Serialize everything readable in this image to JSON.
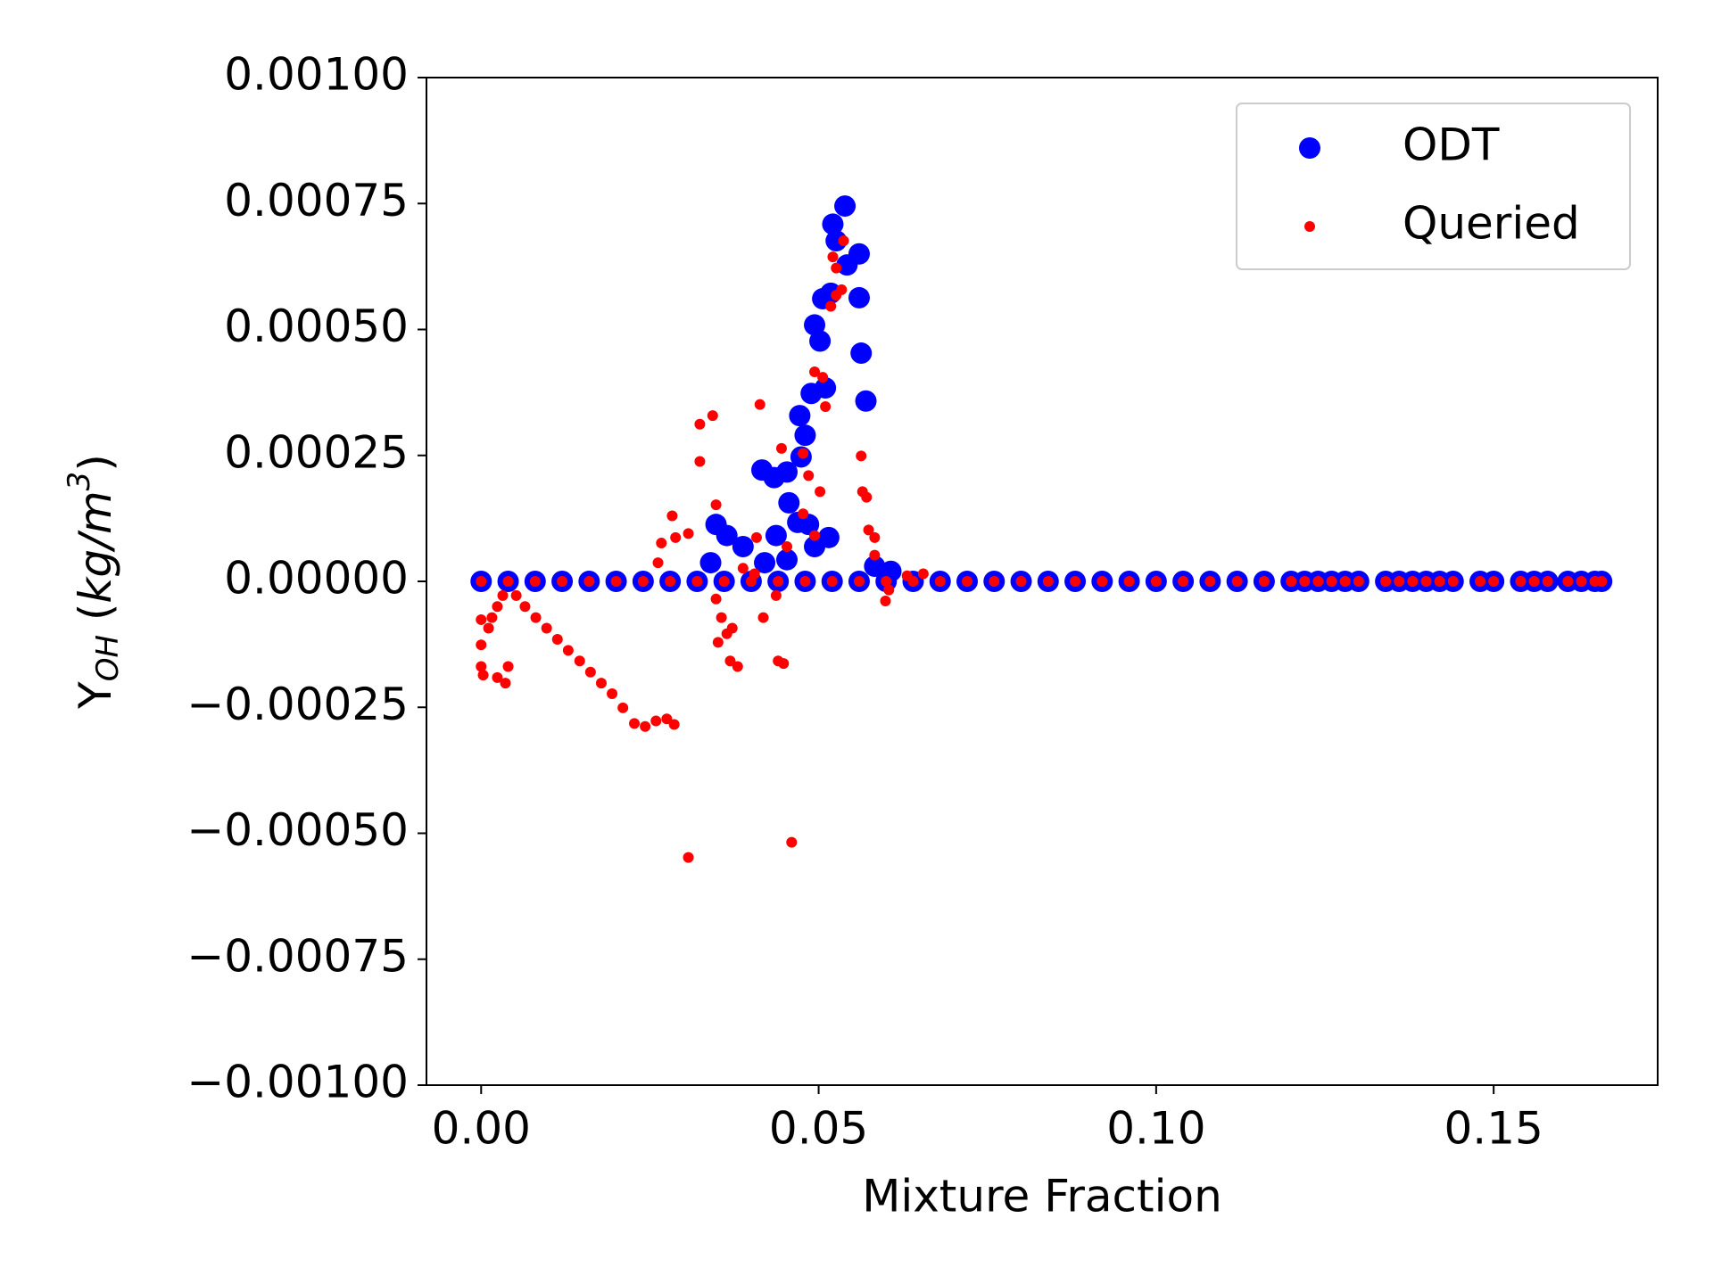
{
  "chart_data": {
    "type": "scatter",
    "xlabel": "Mixture Fraction",
    "ylabel_parts": [
      "Y",
      "OH",
      " (",
      "kg/m",
      "3",
      ")"
    ],
    "xlim": [
      -0.0081,
      0.1743
    ],
    "ylim": [
      -0.001,
      0.001
    ],
    "xticks": [
      {
        "value": 0,
        "label": "0.00"
      },
      {
        "value": 0.05,
        "label": "0.05"
      },
      {
        "value": 0.1,
        "label": "0.10"
      },
      {
        "value": 0.15,
        "label": "0.15"
      }
    ],
    "yticks": [
      {
        "value": -0.001,
        "label": "−0.00100"
      },
      {
        "value": -0.00075,
        "label": "−0.00075"
      },
      {
        "value": -0.0005,
        "label": "−0.00050"
      },
      {
        "value": -0.00025,
        "label": "−0.00025"
      },
      {
        "value": 0,
        "label": "0.00000"
      },
      {
        "value": 0.00025,
        "label": "0.00025"
      },
      {
        "value": 0.0005,
        "label": "0.00050"
      },
      {
        "value": 0.00075,
        "label": "0.00075"
      },
      {
        "value": 0.001,
        "label": "0.00100"
      }
    ],
    "legend": "upper right",
    "series": [
      {
        "name": "ODT",
        "color": "#0000ff",
        "marker_size": "large",
        "x": [
          0,
          0.004,
          0.008,
          0.012,
          0.016,
          0.02,
          0.024,
          0.028,
          0.032,
          0.036,
          0.04,
          0.044,
          0.048,
          0.052,
          0.056,
          0.06,
          0.064,
          0.068,
          0.072,
          0.076,
          0.08,
          0.084,
          0.088,
          0.092,
          0.096,
          0.1,
          0.104,
          0.108,
          0.112,
          0.116,
          0.12,
          0.122,
          0.124,
          0.126,
          0.128,
          0.13,
          0.134,
          0.136,
          0.138,
          0.14,
          0.142,
          0.144,
          0.148,
          0.15,
          0.154,
          0.156,
          0.158,
          0.161,
          0.163,
          0.165,
          0.166,
          0.0539,
          0.0521,
          0.0526,
          0.056,
          0.0542,
          0.0518,
          0.056,
          0.0506,
          0.0494,
          0.0502,
          0.0563,
          0.051,
          0.0489,
          0.057,
          0.0472,
          0.048,
          0.0474,
          0.0416,
          0.0434,
          0.0453,
          0.0456,
          0.0469,
          0.0348,
          0.0364,
          0.0388,
          0.0437,
          0.0485,
          0.0515,
          0.0494,
          0.034,
          0.042,
          0.0453,
          0.0583,
          0.0607
        ],
        "y": [
          0,
          0,
          0,
          0,
          0,
          0,
          0,
          0,
          0,
          0,
          0,
          0,
          0,
          0,
          0,
          0,
          0,
          0,
          0,
          0,
          0,
          0,
          0,
          0,
          0,
          0,
          0,
          0,
          0,
          0,
          0,
          0,
          0,
          0,
          0,
          0,
          0,
          0,
          0,
          0,
          0,
          0,
          0,
          0,
          0,
          0,
          0,
          0,
          0,
          0,
          0,
          0.000745,
          0.000709,
          0.000676,
          0.00065,
          0.000628,
          0.000572,
          0.000563,
          0.000561,
          0.000509,
          0.000477,
          0.000453,
          0.000384,
          0.000373,
          0.000358,
          0.000329,
          0.00029,
          0.000247,
          0.000221,
          0.000206,
          0.000217,
          0.000156,
          0.000117,
          0.000113,
          9.1e-05,
          6.9e-05,
          9.1e-05,
          0.000113,
          8.7e-05,
          6.9e-05,
          3.7e-05,
          3.7e-05,
          4.3e-05,
          3e-05,
          2e-05
        ]
      },
      {
        "name": "Queried",
        "color": "#ff0000",
        "marker_size": "small",
        "x": [
          0,
          0.004,
          0.008,
          0.012,
          0.016,
          0.02,
          0.024,
          0.028,
          0.032,
          0.036,
          0.04,
          0.044,
          0.048,
          0.052,
          0.056,
          0.06,
          0.064,
          0.068,
          0.072,
          0.076,
          0.08,
          0.084,
          0.088,
          0.092,
          0.096,
          0.1,
          0.104,
          0.108,
          0.112,
          0.116,
          0.12,
          0.122,
          0.124,
          0.126,
          0.128,
          0.13,
          0.134,
          0.136,
          0.138,
          0.14,
          0.142,
          0.144,
          0.148,
          0.15,
          0.154,
          0.156,
          0.158,
          0.161,
          0.163,
          0.165,
          0.166,
          0,
          0,
          0,
          0.0003,
          0.0011,
          0.0016,
          0.0024,
          0.0032,
          0.0024,
          0.0036,
          0.004,
          0.0052,
          0.0065,
          0.0081,
          0.0097,
          0.0113,
          0.0129,
          0.0146,
          0.0162,
          0.0178,
          0.0194,
          0.021,
          0.0227,
          0.0243,
          0.0259,
          0.0275,
          0.0286,
          0.0307,
          0.046,
          0.0324,
          0.0343,
          0.0324,
          0.0348,
          0.0283,
          0.0267,
          0.0288,
          0.0307,
          0.0262,
          0.0348,
          0.0356,
          0.0364,
          0.0351,
          0.0372,
          0.038,
          0.0369,
          0.0413,
          0.0408,
          0.0418,
          0.044,
          0.0448,
          0.0437,
          0.0388,
          0.0405,
          0.0445,
          0.0477,
          0.0485,
          0.0502,
          0.0494,
          0.0477,
          0.0453,
          0.0494,
          0.0506,
          0.051,
          0.0518,
          0.0526,
          0.0534,
          0.0521,
          0.0526,
          0.0537,
          0.0563,
          0.0565,
          0.0571,
          0.0574,
          0.0583,
          0.0583,
          0.0599,
          0.0604,
          0.0631,
          0.0655
        ],
        "y": [
          0,
          0,
          0,
          0,
          0,
          0,
          0,
          0,
          0,
          0,
          0,
          0,
          0,
          0,
          0,
          0,
          0,
          0,
          0,
          0,
          0,
          0,
          0,
          0,
          0,
          0,
          0,
          0,
          0,
          0,
          0,
          0,
          0,
          0,
          0,
          0,
          0,
          0,
          0,
          0,
          0,
          0,
          0,
          0,
          0,
          0,
          0,
          0,
          0,
          0,
          0,
          -7.6e-05,
          -0.000126,
          -0.000169,
          -0.000186,
          -9.3e-05,
          -7.2e-05,
          -5e-05,
          -2.8e-05,
          -0.000191,
          -0.000202,
          -0.000169,
          -2.8e-05,
          -5e-05,
          -7.2e-05,
          -9.3e-05,
          -0.000115,
          -0.000137,
          -0.000158,
          -0.00018,
          -0.000202,
          -0.000223,
          -0.000251,
          -0.000282,
          -0.000288,
          -0.000277,
          -0.000273,
          -0.000284,
          -0.000548,
          -0.000518,
          0.000312,
          0.000329,
          0.000238,
          0.000152,
          0.00013,
          7.6e-05,
          8.7e-05,
          9.5e-05,
          3.7e-05,
          -3.5e-05,
          -7.2e-05,
          -0.000104,
          -0.000121,
          -9.3e-05,
          -0.000169,
          -0.000158,
          0.000351,
          8.7e-05,
          -7.2e-05,
          -0.000158,
          -0.000163,
          -2.8e-05,
          2.6e-05,
          1.5e-05,
          0.000264,
          0.000254,
          0.00021,
          0.000178,
          9.1e-05,
          0.000134,
          6.9e-05,
          0.000416,
          0.000405,
          0.000347,
          0.000546,
          0.000568,
          0.000579,
          0.000644,
          0.000622,
          0.000676,
          0.000249,
          0.000178,
          0.000167,
          0.000102,
          8.7e-05,
          5.2e-05,
          -3.9e-05,
          -1.7e-05,
          1.1e-05,
          1.5e-05
        ]
      }
    ]
  }
}
